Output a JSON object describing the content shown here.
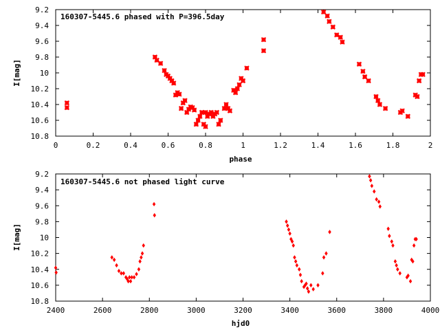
{
  "chart_data": [
    {
      "type": "scatter",
      "title": "160307-5445.6 phased with P=396.5day",
      "xlabel": "phase",
      "ylabel": "I[mag]",
      "xlim": [
        0,
        2
      ],
      "ylim": [
        10.8,
        9.2
      ],
      "y_inverted": true,
      "grid": false,
      "legend": "none",
      "marker": "cross",
      "color": "#ff0000",
      "x_ticks": [
        "0",
        "0.2",
        "0.4",
        "0.6",
        "0.8",
        "1",
        "1.2",
        "1.4",
        "1.6",
        "1.8",
        "2"
      ],
      "y_ticks": [
        "9.2",
        "9.4",
        "9.6",
        "9.8",
        "10",
        "10.2",
        "10.4",
        "10.6",
        "10.8"
      ],
      "x": [
        0.06,
        0.06,
        0.53,
        0.54,
        0.56,
        0.58,
        0.59,
        0.6,
        0.61,
        0.62,
        0.63,
        0.64,
        0.65,
        0.66,
        0.67,
        0.68,
        0.69,
        0.7,
        0.71,
        0.72,
        0.73,
        0.74,
        0.75,
        0.76,
        0.77,
        0.78,
        0.79,
        0.8,
        0.8,
        0.81,
        0.82,
        0.83,
        0.84,
        0.85,
        0.86,
        0.87,
        0.88,
        0.9,
        0.91,
        0.92,
        0.93,
        0.95,
        0.96,
        0.97,
        0.98,
        0.99,
        1.0,
        1.02,
        1.11,
        1.11,
        1.43,
        1.45,
        1.46,
        1.48,
        1.5,
        1.52,
        1.53,
        1.62,
        1.64,
        1.65,
        1.67,
        1.71,
        1.72,
        1.73,
        1.76,
        1.84,
        1.85,
        1.88,
        1.92,
        1.93,
        1.94,
        1.95,
        1.96
      ],
      "y": [
        10.38,
        10.44,
        9.8,
        9.84,
        9.88,
        9.97,
        10.02,
        10.04,
        10.07,
        10.1,
        10.13,
        10.28,
        10.25,
        10.27,
        10.45,
        10.38,
        10.35,
        10.5,
        10.46,
        10.43,
        10.44,
        10.47,
        10.65,
        10.6,
        10.55,
        10.5,
        10.65,
        10.68,
        10.5,
        10.55,
        10.52,
        10.5,
        10.55,
        10.52,
        10.5,
        10.65,
        10.6,
        10.45,
        10.4,
        10.45,
        10.48,
        10.22,
        10.25,
        10.2,
        10.15,
        10.07,
        10.1,
        9.94,
        9.58,
        9.72,
        9.23,
        9.28,
        9.35,
        9.42,
        9.52,
        9.55,
        9.61,
        9.89,
        9.98,
        10.05,
        10.1,
        10.3,
        10.35,
        10.4,
        10.45,
        10.5,
        10.48,
        10.55,
        10.28,
        10.3,
        10.1,
        10.02,
        10.02
      ]
    },
    {
      "type": "scatter",
      "title": "160307-5445.6 not phased light curve",
      "xlabel": "hjd0",
      "ylabel": "I[mag]",
      "xlim": [
        2400,
        4000
      ],
      "ylim": [
        10.8,
        9.2
      ],
      "y_inverted": true,
      "grid": false,
      "legend": "none",
      "marker": "diamond",
      "color": "#ff0000",
      "x_ticks": [
        "2400",
        "2600",
        "2800",
        "3000",
        "3200",
        "3400",
        "3600",
        "3800",
        "4000"
      ],
      "y_ticks": [
        "9.2",
        "9.4",
        "9.6",
        "9.8",
        "10",
        "10.2",
        "10.4",
        "10.6",
        "10.8"
      ],
      "x": [
        2400,
        2402,
        2640,
        2650,
        2660,
        2670,
        2680,
        2690,
        2700,
        2705,
        2710,
        2715,
        2720,
        2725,
        2735,
        2745,
        2755,
        2760,
        2765,
        2770,
        2775,
        2820,
        2822,
        3385,
        3390,
        3395,
        3400,
        3405,
        3410,
        3415,
        3420,
        3425,
        3430,
        3440,
        3445,
        3450,
        3460,
        3465,
        3470,
        3475,
        3480,
        3490,
        3500,
        3520,
        3540,
        3545,
        3555,
        3570,
        3740,
        3745,
        3750,
        3760,
        3770,
        3780,
        3785,
        3820,
        3825,
        3835,
        3840,
        3850,
        3855,
        3860,
        3870,
        3900,
        3905,
        3915,
        3920,
        3925,
        3930,
        3935,
        3940
      ],
      "y": [
        10.38,
        10.44,
        10.25,
        10.28,
        10.35,
        10.42,
        10.45,
        10.45,
        10.5,
        10.52,
        10.55,
        10.5,
        10.55,
        10.5,
        10.5,
        10.46,
        10.4,
        10.3,
        10.25,
        10.2,
        10.1,
        9.58,
        9.72,
        9.8,
        9.85,
        9.9,
        9.95,
        10.02,
        10.05,
        10.1,
        10.25,
        10.3,
        10.35,
        10.4,
        10.47,
        10.55,
        10.62,
        10.6,
        10.58,
        10.64,
        10.68,
        10.6,
        10.65,
        10.6,
        10.45,
        10.25,
        10.2,
        9.93,
        9.23,
        9.28,
        9.35,
        9.42,
        9.52,
        9.55,
        9.61,
        9.89,
        9.98,
        10.05,
        10.1,
        10.3,
        10.35,
        10.4,
        10.45,
        10.5,
        10.48,
        10.55,
        10.28,
        10.3,
        10.1,
        10.02,
        10.02
      ]
    }
  ]
}
